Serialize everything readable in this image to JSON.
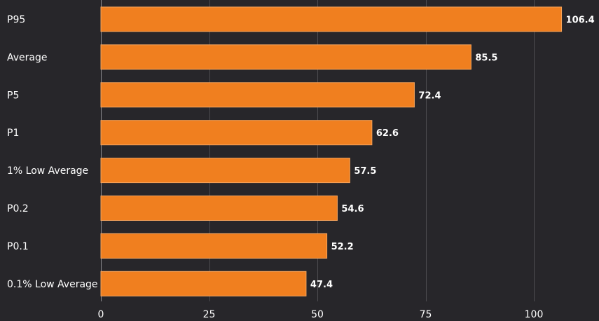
{
  "colors": {
    "background": "#27262a",
    "bar": "#f07f1f",
    "bar_stroke": "#f6a45c",
    "text": "#ffffff",
    "grid": "#4d4c50"
  },
  "chart_data": {
    "type": "bar",
    "orientation": "horizontal",
    "title": "",
    "xlabel": "",
    "ylabel": "",
    "categories": [
      "P95",
      "Average",
      "P5",
      "P1",
      "1% Low Average",
      "P0.2",
      "P0.1",
      "0.1% Low Average"
    ],
    "values": [
      106.4,
      85.5,
      72.4,
      62.6,
      57.5,
      54.6,
      52.2,
      47.4
    ],
    "value_labels": [
      "106.4",
      "85.5",
      "72.4",
      "62.6",
      "57.5",
      "54.6",
      "52.2",
      "47.4"
    ],
    "xlim": [
      0,
      112
    ],
    "xticks": [
      0,
      25,
      50,
      75,
      100
    ],
    "xtick_labels": [
      "0",
      "25",
      "50",
      "75",
      "100"
    ],
    "grid": true,
    "legend": "none"
  }
}
